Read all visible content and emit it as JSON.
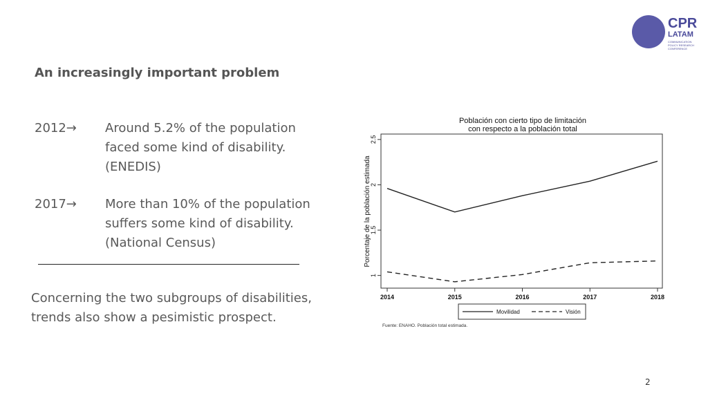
{
  "slide": {
    "title": "An increasingly important problem",
    "page_number": "2"
  },
  "logo": {
    "main": "CPR",
    "sub": "LATAM",
    "tagline": "COMMUNICATION POLICY RESEARCH CONFERENCE"
  },
  "stats": [
    {
      "year": "2012→",
      "text": "Around 5.2% of the population faced some kind of disability. (ENEDIS)"
    },
    {
      "year": "2017→",
      "text": "More than 10% of the population suffers some kind of disability. (National Census)"
    }
  ],
  "conclusion": "Concerning the two subgroups of disabilities, trends also show a pesimistic prospect.",
  "chart_data": {
    "type": "line",
    "title": "Población con cierto tipo de limitación",
    "subtitle": "con respecto a la población total",
    "xlabel": "",
    "ylabel": "Porcentaje de la población estimada",
    "x": [
      2014,
      2015,
      2016,
      2017,
      2018
    ],
    "x_tick_labels": [
      "2014",
      "2015",
      "2016",
      "2017",
      "2018"
    ],
    "y_ticks": [
      1,
      1.5,
      2,
      2.5
    ],
    "y_tick_labels": [
      "1",
      "1.5",
      "2",
      "2.5"
    ],
    "ylim": [
      0.86,
      2.56
    ],
    "xlim": [
      2014,
      2018
    ],
    "grid": false,
    "legend_position": "bottom",
    "series": [
      {
        "name": "Movilidad",
        "values": [
          1.96,
          1.7,
          1.88,
          2.04,
          2.26
        ],
        "style": "solid",
        "color": "#222222"
      },
      {
        "name": "Visión",
        "values": [
          1.04,
          0.93,
          1.01,
          1.14,
          1.16
        ],
        "style": "dashed",
        "color": "#222222"
      }
    ],
    "source_note": "Fuente: ENAHO. Población total estimada."
  }
}
